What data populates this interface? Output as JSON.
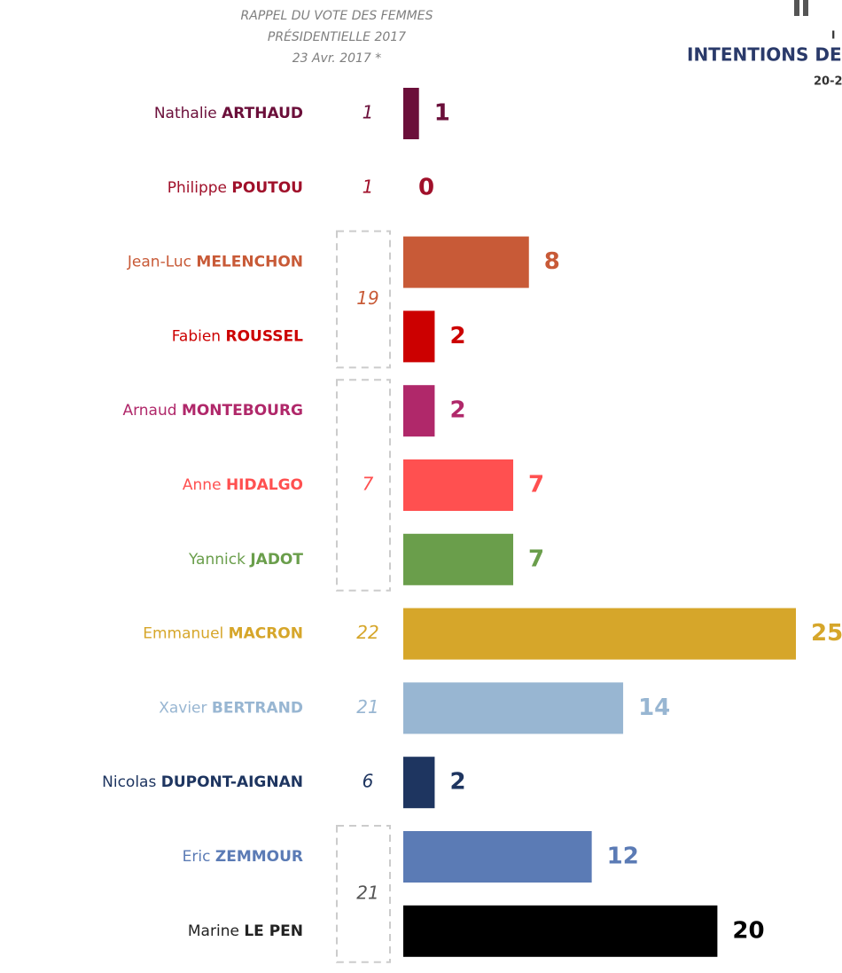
{
  "chart_data": {
    "type": "bar",
    "orientation": "horizontal",
    "header": [
      "RAPPEL DU VOTE DES FEMMES",
      "PRÉSIDENTIELLE 2017",
      "23 Avr. 2017 *"
    ],
    "right_header": {
      "line1": "I",
      "title": "INTENTIONS DE",
      "dates": "20-2"
    },
    "first_names": [
      "Nathalie",
      "Philippe",
      "Jean-Luc",
      "Fabien",
      "Arnaud",
      "Anne",
      "Yannick",
      "Emmanuel",
      "Xavier",
      "Nicolas",
      "Eric",
      "Marine"
    ],
    "categories": [
      "ARTHAUD",
      "POUTOU",
      "MELENCHON",
      "ROUSSEL",
      "MONTEBOURG",
      "HIDALGO",
      "JADOT",
      "MACRON",
      "BERTRAND",
      "DUPONT-AIGNAN",
      "ZEMMOUR",
      "LE PEN"
    ],
    "values": [
      1,
      0,
      8,
      2,
      2,
      7,
      7,
      25,
      14,
      2,
      12,
      20
    ],
    "colors": [
      "#6b0f3a",
      "#a0102a",
      "#c85a37",
      "#cc0000",
      "#b0286a",
      "#ff5050",
      "#6a9e4b",
      "#d6a62a",
      "#98b6d2",
      "#1e3560",
      "#5b7bb5",
      "#000000"
    ],
    "xlim": [
      0,
      25
    ],
    "reference_2017": {
      "values": [
        1,
        1,
        19,
        7,
        22,
        21,
        6,
        21
      ],
      "colors": [
        "#6b0f3a",
        "#a0102a",
        "#c85a37",
        "#ff5050",
        "#d6a62a",
        "#98b6d2",
        "#1e3560",
        "#555555"
      ]
    }
  }
}
